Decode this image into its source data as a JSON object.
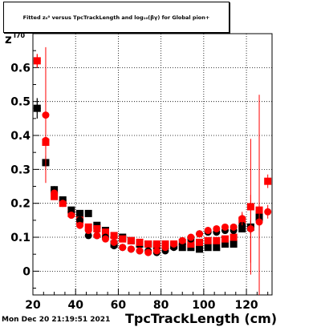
{
  "title": "Fitted  z₀⁰  versus TpcTrackLength and log₁₀(βγ) for Global pion+",
  "footer": "Mon Dec 20 21:19:51 2021",
  "chart_data": {
    "type": "scatter",
    "xlabel": "TpcTrackLength (cm)",
    "ylabel": "z",
    "ylabel_sub": "I70",
    "xlim": [
      20,
      132
    ],
    "ylim": [
      -0.07,
      0.7
    ],
    "x_ticks": [
      20,
      40,
      60,
      80,
      100,
      120
    ],
    "y_ticks": [
      0,
      0.1,
      0.2,
      0.3,
      0.4,
      0.5,
      0.6
    ],
    "grid": true,
    "series": [
      {
        "color": "#000000",
        "marker": "square",
        "points": [
          {
            "x": 22,
            "y": 0.48,
            "err": 0.03
          },
          {
            "x": 26,
            "y": 0.32,
            "err": 0.02
          },
          {
            "x": 30,
            "y": 0.24,
            "err": 0.01
          },
          {
            "x": 34,
            "y": 0.21,
            "err": 0.01
          },
          {
            "x": 38,
            "y": 0.18,
            "err": 0.006
          },
          {
            "x": 42,
            "y": 0.17,
            "err": 0.005
          },
          {
            "x": 46,
            "y": 0.17,
            "err": 0.005
          },
          {
            "x": 50,
            "y": 0.135,
            "err": 0.004
          },
          {
            "x": 54,
            "y": 0.12,
            "err": 0.004
          },
          {
            "x": 58,
            "y": 0.08,
            "err": 0.004
          },
          {
            "x": 62,
            "y": 0.1,
            "err": 0.004
          },
          {
            "x": 66,
            "y": 0.09,
            "err": 0.004
          },
          {
            "x": 70,
            "y": 0.08,
            "err": 0.004
          },
          {
            "x": 74,
            "y": 0.08,
            "err": 0.004
          },
          {
            "x": 78,
            "y": 0.075,
            "err": 0.004
          },
          {
            "x": 82,
            "y": 0.075,
            "err": 0.004
          },
          {
            "x": 86,
            "y": 0.075,
            "err": 0.004
          },
          {
            "x": 90,
            "y": 0.07,
            "err": 0.004
          },
          {
            "x": 94,
            "y": 0.07,
            "err": 0.004
          },
          {
            "x": 98,
            "y": 0.065,
            "err": 0.004
          },
          {
            "x": 102,
            "y": 0.07,
            "err": 0.005
          },
          {
            "x": 106,
            "y": 0.07,
            "err": 0.005
          },
          {
            "x": 110,
            "y": 0.08,
            "err": 0.006
          },
          {
            "x": 114,
            "y": 0.08,
            "err": 0.007
          },
          {
            "x": 118,
            "y": 0.125,
            "err": 0.01
          },
          {
            "x": 122,
            "y": 0.13,
            "err": 0.02
          },
          {
            "x": 126,
            "y": 0.16,
            "err": 0.03
          }
        ]
      },
      {
        "color": "#ff0000",
        "marker": "square",
        "points": [
          {
            "x": 22,
            "y": 0.62,
            "err": 0.02
          },
          {
            "x": 26,
            "y": 0.38,
            "err": 0.02
          },
          {
            "x": 30,
            "y": 0.22,
            "err": 0.01
          },
          {
            "x": 34,
            "y": 0.2,
            "err": 0.008
          },
          {
            "x": 38,
            "y": 0.17,
            "err": 0.006
          },
          {
            "x": 42,
            "y": 0.15,
            "err": 0.005
          },
          {
            "x": 46,
            "y": 0.13,
            "err": 0.005
          },
          {
            "x": 50,
            "y": 0.125,
            "err": 0.004
          },
          {
            "x": 54,
            "y": 0.115,
            "err": 0.004
          },
          {
            "x": 58,
            "y": 0.105,
            "err": 0.004
          },
          {
            "x": 62,
            "y": 0.095,
            "err": 0.004
          },
          {
            "x": 66,
            "y": 0.09,
            "err": 0.004
          },
          {
            "x": 70,
            "y": 0.085,
            "err": 0.004
          },
          {
            "x": 74,
            "y": 0.08,
            "err": 0.004
          },
          {
            "x": 78,
            "y": 0.08,
            "err": 0.004
          },
          {
            "x": 82,
            "y": 0.08,
            "err": 0.004
          },
          {
            "x": 86,
            "y": 0.08,
            "err": 0.004
          },
          {
            "x": 90,
            "y": 0.085,
            "err": 0.004
          },
          {
            "x": 94,
            "y": 0.08,
            "err": 0.004
          },
          {
            "x": 98,
            "y": 0.085,
            "err": 0.004
          },
          {
            "x": 102,
            "y": 0.09,
            "err": 0.005
          },
          {
            "x": 106,
            "y": 0.09,
            "err": 0.005
          },
          {
            "x": 110,
            "y": 0.095,
            "err": 0.006
          },
          {
            "x": 114,
            "y": 0.1,
            "err": 0.008
          },
          {
            "x": 118,
            "y": 0.15,
            "err": 0.02
          },
          {
            "x": 122,
            "y": 0.19,
            "err": 0.2
          },
          {
            "x": 126,
            "y": 0.18,
            "err": 0.34
          },
          {
            "x": 130,
            "y": 0.265,
            "err": 0.02
          }
        ]
      },
      {
        "color": "#000000",
        "marker": "circle",
        "points": [
          {
            "x": 22,
            "y": 0.48,
            "err": 0.03
          },
          {
            "x": 26,
            "y": 0.32,
            "err": 0.02
          },
          {
            "x": 30,
            "y": 0.24,
            "err": 0.01
          },
          {
            "x": 34,
            "y": 0.21,
            "err": 0.01
          },
          {
            "x": 38,
            "y": 0.175,
            "err": 0.006
          },
          {
            "x": 42,
            "y": 0.15,
            "err": 0.005
          },
          {
            "x": 46,
            "y": 0.105,
            "err": 0.005
          },
          {
            "x": 50,
            "y": 0.105,
            "err": 0.004
          },
          {
            "x": 54,
            "y": 0.1,
            "err": 0.004
          },
          {
            "x": 58,
            "y": 0.075,
            "err": 0.004
          },
          {
            "x": 62,
            "y": 0.07,
            "err": 0.004
          },
          {
            "x": 66,
            "y": 0.065,
            "err": 0.004
          },
          {
            "x": 70,
            "y": 0.06,
            "err": 0.004
          },
          {
            "x": 74,
            "y": 0.06,
            "err": 0.004
          },
          {
            "x": 78,
            "y": 0.055,
            "err": 0.004
          },
          {
            "x": 82,
            "y": 0.06,
            "err": 0.004
          },
          {
            "x": 86,
            "y": 0.07,
            "err": 0.004
          },
          {
            "x": 90,
            "y": 0.08,
            "err": 0.004
          },
          {
            "x": 94,
            "y": 0.095,
            "err": 0.004
          },
          {
            "x": 98,
            "y": 0.11,
            "err": 0.005
          },
          {
            "x": 102,
            "y": 0.115,
            "err": 0.005
          },
          {
            "x": 106,
            "y": 0.115,
            "err": 0.005
          },
          {
            "x": 110,
            "y": 0.12,
            "err": 0.006
          },
          {
            "x": 114,
            "y": 0.12,
            "err": 0.007
          },
          {
            "x": 118,
            "y": 0.135,
            "err": 0.01
          },
          {
            "x": 122,
            "y": 0.13,
            "err": 0.02
          },
          {
            "x": 126,
            "y": 0.15,
            "err": 0.03
          }
        ]
      },
      {
        "color": "#ff0000",
        "marker": "circle",
        "points": [
          {
            "x": 22,
            "y": 0.62,
            "err": 0.02
          },
          {
            "x": 26,
            "y": 0.46,
            "err": 0.2
          },
          {
            "x": 26,
            "y": 0.385,
            "err": 0.01
          },
          {
            "x": 30,
            "y": 0.23,
            "err": 0.01
          },
          {
            "x": 34,
            "y": 0.2,
            "err": 0.008
          },
          {
            "x": 38,
            "y": 0.165,
            "err": 0.006
          },
          {
            "x": 42,
            "y": 0.135,
            "err": 0.005
          },
          {
            "x": 46,
            "y": 0.12,
            "err": 0.005
          },
          {
            "x": 50,
            "y": 0.105,
            "err": 0.004
          },
          {
            "x": 54,
            "y": 0.095,
            "err": 0.004
          },
          {
            "x": 58,
            "y": 0.085,
            "err": 0.004
          },
          {
            "x": 62,
            "y": 0.07,
            "err": 0.004
          },
          {
            "x": 66,
            "y": 0.065,
            "err": 0.004
          },
          {
            "x": 70,
            "y": 0.06,
            "err": 0.004
          },
          {
            "x": 74,
            "y": 0.055,
            "err": 0.004
          },
          {
            "x": 78,
            "y": 0.06,
            "err": 0.004
          },
          {
            "x": 82,
            "y": 0.07,
            "err": 0.004
          },
          {
            "x": 86,
            "y": 0.08,
            "err": 0.004
          },
          {
            "x": 90,
            "y": 0.09,
            "err": 0.004
          },
          {
            "x": 94,
            "y": 0.1,
            "err": 0.004
          },
          {
            "x": 98,
            "y": 0.11,
            "err": 0.005
          },
          {
            "x": 102,
            "y": 0.12,
            "err": 0.005
          },
          {
            "x": 106,
            "y": 0.125,
            "err": 0.005
          },
          {
            "x": 110,
            "y": 0.13,
            "err": 0.006
          },
          {
            "x": 114,
            "y": 0.13,
            "err": 0.007
          },
          {
            "x": 118,
            "y": 0.155,
            "err": 0.02
          },
          {
            "x": 122,
            "y": 0.125,
            "err": 0.1
          },
          {
            "x": 126,
            "y": 0.145,
            "err": 0.05
          },
          {
            "x": 130,
            "y": 0.175,
            "err": 0.02
          }
        ]
      }
    ]
  }
}
